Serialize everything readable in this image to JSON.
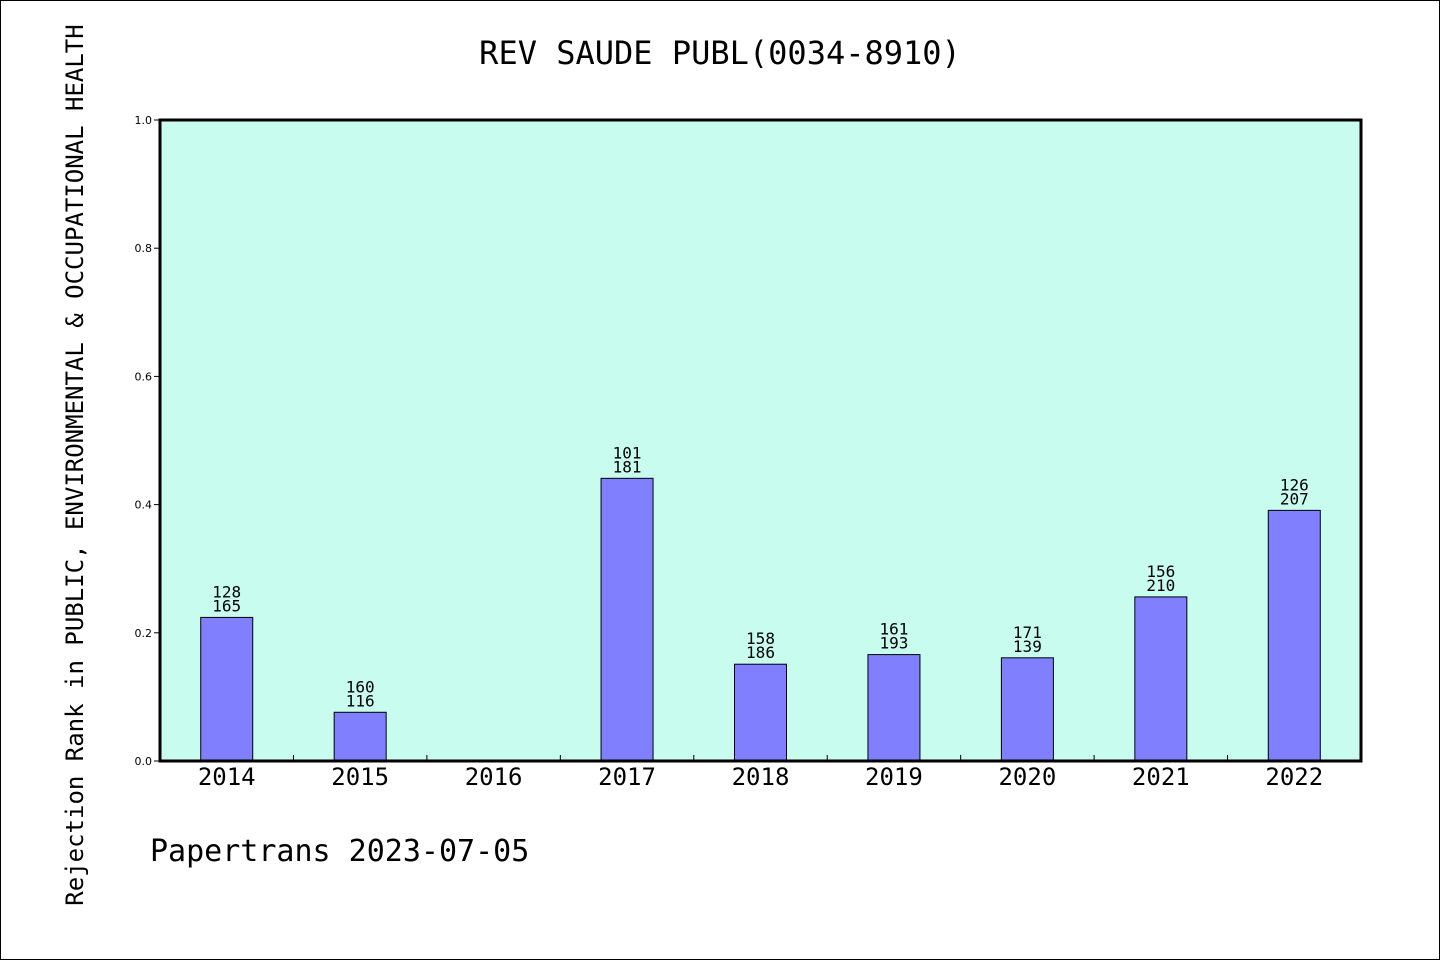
{
  "chart_data": {
    "type": "bar",
    "title": "REV SAUDE PUBL(0034-8910)",
    "ylabel": "Rejection Rank in PUBLIC, ENVIRONMENTAL & OCCUPATIONAL HEALTH",
    "xlabel": "",
    "ylim": [
      0,
      1.0
    ],
    "yticks": [
      "0.0",
      "0.2",
      "0.4",
      "0.6",
      "0.8",
      "1.0"
    ],
    "categories": [
      "2014",
      "2015",
      "2016",
      "2017",
      "2018",
      "2019",
      "2020",
      "2021",
      "2022"
    ],
    "values": [
      0.224,
      0.076,
      null,
      0.441,
      0.151,
      0.166,
      0.161,
      0.256,
      0.391
    ],
    "data_labels": [
      [
        "128",
        "165"
      ],
      [
        "160",
        "116"
      ],
      null,
      [
        "101",
        "181"
      ],
      [
        "158",
        "186"
      ],
      [
        "161",
        "193"
      ],
      [
        "171",
        "139"
      ],
      [
        "156",
        "210"
      ],
      [
        "126",
        "207"
      ]
    ],
    "colors": {
      "plot_background": "#c8fcee",
      "bar": "#8080ff"
    },
    "grid": false
  },
  "footer": "Papertrans 2023-07-05"
}
